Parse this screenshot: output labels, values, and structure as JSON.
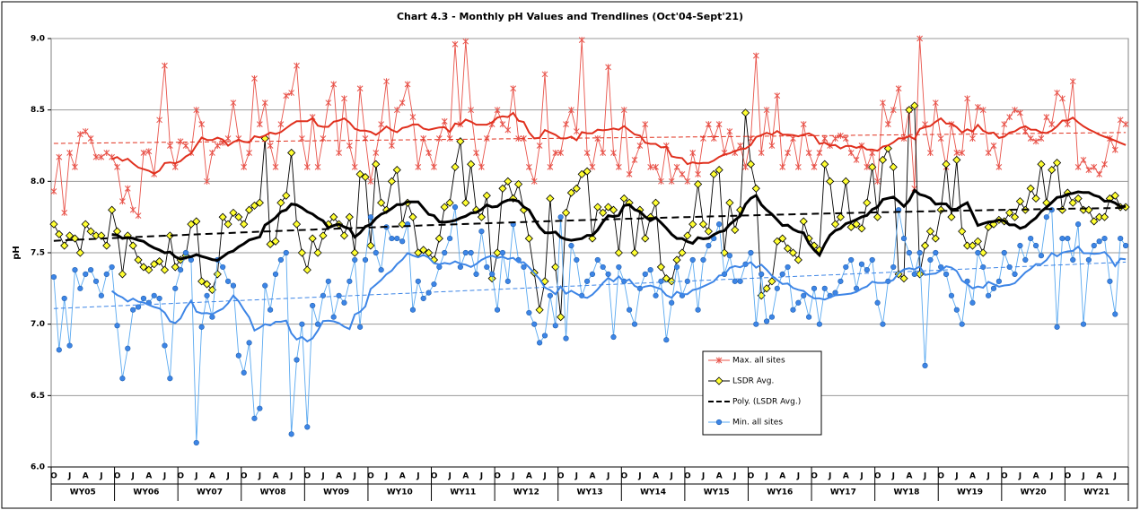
{
  "chart_data": {
    "type": "line",
    "title": "Chart 4.3 - Monthly pH Values and Trendlines (Oct'04-Sept'21)",
    "y_label": "pH",
    "ylim": [
      6,
      9
    ],
    "yticks": [
      {
        "value": 6,
        "label": "6.0"
      },
      {
        "value": 6.5,
        "label": "6.5"
      },
      {
        "value": 7,
        "label": "7.0"
      },
      {
        "value": 7.5,
        "label": "7.5"
      },
      {
        "value": 8,
        "label": "8.0"
      },
      {
        "value": 8.5,
        "label": "8.5"
      },
      {
        "value": 9,
        "label": "9.0"
      }
    ],
    "grid": true,
    "categories": [
      "O",
      null,
      null,
      "J",
      null,
      null,
      "A",
      null,
      null,
      "J",
      null,
      null,
      "O",
      null,
      null,
      "J",
      null,
      null,
      "A",
      null,
      null,
      "J",
      null,
      null,
      "O",
      null,
      null,
      "J",
      null,
      null,
      "A",
      null,
      null,
      "J",
      null,
      null,
      "O",
      null,
      null,
      "J",
      null,
      null,
      "A",
      null,
      null,
      "J",
      null,
      null,
      "O",
      null,
      null,
      "J",
      null,
      null,
      "A",
      null,
      null,
      "J",
      null,
      null,
      "O",
      null,
      null,
      "J",
      null,
      null,
      "A",
      null,
      null,
      "J",
      null,
      null,
      "O",
      null,
      null,
      "J",
      null,
      null,
      "A",
      null,
      null,
      "J",
      null,
      null,
      "O",
      null,
      null,
      "J",
      null,
      null,
      "A",
      null,
      null,
      "J",
      null,
      null,
      "O",
      null,
      null,
      "J",
      null,
      null,
      "A",
      null,
      null,
      "J",
      null,
      null,
      "O",
      null,
      null,
      "J",
      null,
      null,
      "A",
      null,
      null,
      "J",
      null,
      null,
      "O",
      null,
      null,
      "J",
      null,
      null,
      "A",
      null,
      null,
      "J",
      null,
      null,
      "O",
      null,
      null,
      "J",
      null,
      null,
      "A",
      null,
      null,
      "J",
      null,
      null,
      "O",
      null,
      null,
      "J",
      null,
      null,
      "A",
      null,
      null,
      "J",
      null,
      null,
      "O",
      null,
      null,
      "J",
      null,
      null,
      "A",
      null,
      null,
      "J",
      null,
      null,
      "O",
      null,
      null,
      "J",
      null,
      null,
      "A",
      null,
      null,
      "J",
      null,
      null,
      "O",
      null,
      null,
      "J",
      null,
      null,
      "A",
      null,
      null,
      "J",
      null,
      null,
      "O",
      null,
      null,
      "J",
      null,
      null,
      "A",
      null,
      null,
      "J",
      null,
      null
    ],
    "groups": [
      "WY05",
      "WY06",
      "WY07",
      "WY08",
      "WY09",
      "WY10",
      "WY11",
      "WY12",
      "WY13",
      "WY14",
      "WY15",
      "WY16",
      "WY17",
      "WY18",
      "WY19",
      "WY20",
      "WY21"
    ],
    "legend": "center-right",
    "series": [
      {
        "name": "Max. all sites",
        "color": "#e8534a",
        "marker": "star",
        "trendlines": [
          {
            "kind": "moving_average",
            "period": 12,
            "color": "#e0301e"
          },
          {
            "kind": "linear",
            "color": "#e0301e",
            "dashed": true
          }
        ],
        "values": [
          7.93,
          8.17,
          7.78,
          8.2,
          8.1,
          8.33,
          8.35,
          8.3,
          8.17,
          8.17,
          8.2,
          8.17,
          8.1,
          7.86,
          7.95,
          7.8,
          7.76,
          8.2,
          8.21,
          8.05,
          8.43,
          8.81,
          8.25,
          8.1,
          8.28,
          8.25,
          8.2,
          8.5,
          8.4,
          8.0,
          8.2,
          8.25,
          8.27,
          8.3,
          8.55,
          8.3,
          8.1,
          8.2,
          8.72,
          8.4,
          8.55,
          8.25,
          8.1,
          8.4,
          8.6,
          8.62,
          8.81,
          8.3,
          8.1,
          8.45,
          8.1,
          8.3,
          8.55,
          8.68,
          8.2,
          8.58,
          8.25,
          8.1,
          8.65,
          8.3,
          8.0,
          8.2,
          8.4,
          8.7,
          8.25,
          8.5,
          8.55,
          8.68,
          8.45,
          8.1,
          8.3,
          8.2,
          8.1,
          8.3,
          8.42,
          8.3,
          8.96,
          8.4,
          8.98,
          8.5,
          8.2,
          8.1,
          8.3,
          8.4,
          8.5,
          8.4,
          8.36,
          8.65,
          8.3,
          8.3,
          8.1,
          8.0,
          8.25,
          8.75,
          8.1,
          8.2,
          8.2,
          8.4,
          8.5,
          8.35,
          8.99,
          8.2,
          8.1,
          8.3,
          8.2,
          8.8,
          8.2,
          8.1,
          8.5,
          8.05,
          8.15,
          8.25,
          8.4,
          8.1,
          8.1,
          8.0,
          8.25,
          8.0,
          8.1,
          8.05,
          8.0,
          8.2,
          8.05,
          8.3,
          8.4,
          8.3,
          8.4,
          8.2,
          8.35,
          8.2,
          8.25,
          8.1,
          8.3,
          8.88,
          8.2,
          8.5,
          8.25,
          8.6,
          8.1,
          8.2,
          8.3,
          8.1,
          8.4,
          8.2,
          8.1,
          8.2,
          8.3,
          8.25,
          8.3,
          8.32,
          8.3,
          8.2,
          8.15,
          8.25,
          8.1,
          8.2,
          8.0,
          8.55,
          8.4,
          8.5,
          8.65,
          8.3,
          8.5,
          7.95,
          9.0,
          8.4,
          8.2,
          8.55,
          8.3,
          8.1,
          8.4,
          8.2,
          8.2,
          8.58,
          8.3,
          8.52,
          8.5,
          8.2,
          8.25,
          8.1,
          8.4,
          8.45,
          8.5,
          8.48,
          8.35,
          8.3,
          8.28,
          8.3,
          8.45,
          8.4,
          8.62,
          8.58,
          8.4,
          8.7,
          8.1,
          8.15,
          8.08,
          8.1,
          8.05,
          8.12,
          8.3,
          8.22,
          8.43,
          8.4
        ]
      },
      {
        "name": "LSDR Avg.",
        "color": "#000000",
        "marker": "diamond",
        "marker_fill": "#ffff33",
        "trendlines": [
          {
            "kind": "moving_average",
            "period": 12,
            "color": "#000000"
          },
          {
            "kind": "poly",
            "order": 2,
            "color": "#000000",
            "dashed": true,
            "name": "Poly. (LSDR Avg.)"
          }
        ],
        "values": [
          7.7,
          7.63,
          7.55,
          7.62,
          7.6,
          7.5,
          7.7,
          7.65,
          7.62,
          7.62,
          7.55,
          7.8,
          7.65,
          7.35,
          7.62,
          7.55,
          7.45,
          7.4,
          7.38,
          7.42,
          7.44,
          7.38,
          7.62,
          7.4,
          7.45,
          7.48,
          7.7,
          7.72,
          7.3,
          7.28,
          7.24,
          7.35,
          7.75,
          7.7,
          7.78,
          7.75,
          7.7,
          7.8,
          7.83,
          7.85,
          8.3,
          7.56,
          7.58,
          7.85,
          7.9,
          8.2,
          7.7,
          7.5,
          7.38,
          7.6,
          7.5,
          7.62,
          7.7,
          7.75,
          7.7,
          7.62,
          7.75,
          7.5,
          8.05,
          8.03,
          7.55,
          8.12,
          7.85,
          7.8,
          8.0,
          8.08,
          7.7,
          7.85,
          7.75,
          7.5,
          7.52,
          7.5,
          7.45,
          7.6,
          7.82,
          7.85,
          8.1,
          8.28,
          7.85,
          8.12,
          7.8,
          7.75,
          7.9,
          7.32,
          7.5,
          7.95,
          8.0,
          7.88,
          7.98,
          7.8,
          7.6,
          7.36,
          7.1,
          7.3,
          7.88,
          7.4,
          7.05,
          7.78,
          7.92,
          7.95,
          8.05,
          8.07,
          7.6,
          7.82,
          7.78,
          7.82,
          7.8,
          7.5,
          7.88,
          7.85,
          7.5,
          7.8,
          7.6,
          7.75,
          7.85,
          7.4,
          7.32,
          7.3,
          7.45,
          7.5,
          7.62,
          7.7,
          7.98,
          7.7,
          7.65,
          8.05,
          8.08,
          7.5,
          7.85,
          7.66,
          7.8,
          8.48,
          8.12,
          7.95,
          7.2,
          7.25,
          7.3,
          7.58,
          7.6,
          7.53,
          7.5,
          7.45,
          7.72,
          7.6,
          7.55,
          7.52,
          8.12,
          8.0,
          7.7,
          7.75,
          8.0,
          7.68,
          7.7,
          7.67,
          7.85,
          8.1,
          7.75,
          8.15,
          8.23,
          8.1,
          7.35,
          7.32,
          8.5,
          8.53,
          7.35,
          7.55,
          7.65,
          7.6,
          7.8,
          8.12,
          7.75,
          8.15,
          7.65,
          7.55,
          7.55,
          7.58,
          7.5,
          7.68,
          7.7,
          7.73,
          7.72,
          7.78,
          7.75,
          7.86,
          7.8,
          7.95,
          7.88,
          8.12,
          7.85,
          8.08,
          8.13,
          7.8,
          7.92,
          7.85,
          7.88,
          7.8,
          7.8,
          7.72,
          7.75,
          7.75,
          7.88,
          7.9,
          7.82,
          7.82
        ]
      },
      {
        "name": "Min. all sites",
        "color": "#5aa9f0",
        "marker": "circle",
        "marker_fill": "#3d85e6",
        "trendlines": [
          {
            "kind": "moving_average",
            "period": 12,
            "color": "#3d85e6"
          },
          {
            "kind": "linear",
            "color": "#3d85e6",
            "dashed": true
          }
        ],
        "values": [
          7.33,
          6.82,
          7.18,
          6.85,
          7.38,
          7.25,
          7.35,
          7.38,
          7.3,
          7.2,
          7.35,
          7.4,
          6.99,
          6.62,
          6.83,
          7.1,
          7.12,
          7.18,
          7.15,
          7.2,
          7.18,
          6.85,
          6.62,
          7.25,
          7.38,
          7.5,
          7.45,
          6.17,
          6.98,
          7.2,
          7.05,
          7.45,
          7.4,
          7.3,
          7.27,
          6.78,
          6.66,
          6.87,
          6.34,
          6.41,
          7.27,
          7.1,
          7.35,
          7.45,
          7.5,
          6.23,
          6.75,
          7.0,
          6.28,
          7.13,
          7.0,
          7.2,
          7.3,
          7.05,
          7.2,
          7.15,
          7.3,
          7.45,
          6.98,
          7.45,
          7.75,
          7.5,
          7.38,
          7.68,
          7.6,
          7.6,
          7.58,
          7.7,
          7.1,
          7.3,
          7.18,
          7.22,
          7.28,
          7.4,
          7.5,
          7.6,
          7.82,
          7.4,
          7.5,
          7.5,
          7.35,
          7.65,
          7.4,
          7.35,
          7.1,
          7.5,
          7.3,
          7.7,
          7.45,
          7.4,
          7.08,
          7.0,
          6.87,
          6.92,
          7.2,
          6.99,
          7.75,
          6.9,
          7.55,
          7.45,
          7.2,
          7.3,
          7.35,
          7.45,
          7.4,
          7.35,
          6.91,
          7.4,
          7.3,
          7.1,
          7.0,
          7.25,
          7.35,
          7.38,
          7.2,
          7.3,
          6.89,
          7.15,
          7.4,
          7.2,
          7.3,
          7.45,
          7.1,
          7.45,
          7.55,
          7.6,
          7.7,
          7.35,
          7.48,
          7.3,
          7.3,
          7.42,
          7.5,
          7.0,
          7.35,
          7.02,
          7.05,
          7.25,
          7.35,
          7.4,
          7.1,
          7.15,
          7.2,
          7.05,
          7.25,
          7.0,
          7.25,
          7.2,
          7.22,
          7.3,
          7.4,
          7.45,
          7.25,
          7.42,
          7.38,
          7.45,
          7.15,
          7.0,
          7.3,
          7.4,
          7.8,
          7.6,
          7.5,
          7.35,
          7.5,
          6.71,
          7.45,
          7.5,
          7.4,
          7.35,
          7.2,
          7.1,
          7.0,
          7.3,
          7.15,
          7.5,
          7.4,
          7.2,
          7.25,
          7.3,
          7.5,
          7.4,
          7.35,
          7.55,
          7.45,
          7.6,
          7.55,
          7.48,
          7.75,
          7.8,
          6.98,
          7.6,
          7.6,
          7.45,
          7.7,
          7.0,
          7.45,
          7.55,
          7.58,
          7.6,
          7.3,
          7.07,
          7.6,
          7.55
        ]
      }
    ]
  }
}
